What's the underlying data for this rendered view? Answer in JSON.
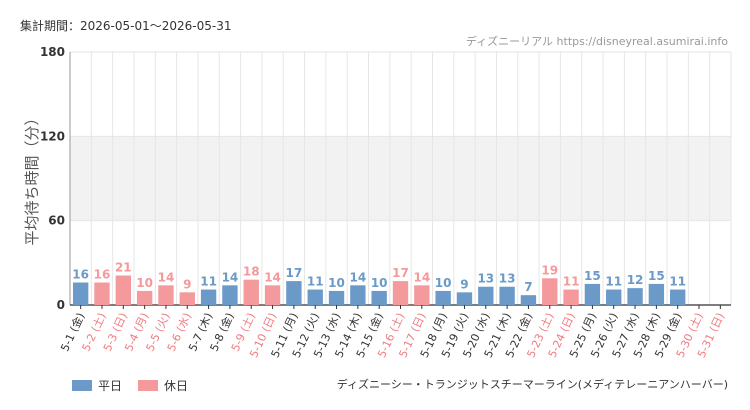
{
  "header": {
    "period": "集計期間：2026-05-01～2026-05-31",
    "source": "ディズニーリアル https://disneyreal.asumirai.info"
  },
  "footer": {
    "attraction": "ディズニーシー・トランジットスチーマーライン(メディテレーニアンハーバー)"
  },
  "legend": {
    "weekday": "平日",
    "holiday": "休日"
  },
  "colors": {
    "weekday": "#6b9ac9",
    "holiday": "#f4999c",
    "band": "#f2f2f2",
    "grid": "#e6e6e6"
  },
  "chart_data": {
    "type": "bar",
    "ylabel": "平均待ち時間（分）",
    "ylim": [
      0,
      180
    ],
    "yticks": [
      0,
      60,
      120,
      180
    ],
    "bands": [
      [
        120,
        180
      ],
      [
        60,
        120
      ]
    ],
    "categories": [
      "5-1 (金)",
      "5-2 (土)",
      "5-3 (日)",
      "5-4 (月)",
      "5-5 (火)",
      "5-6 (水)",
      "5-7 (木)",
      "5-8 (金)",
      "5-9 (土)",
      "5-10 (日)",
      "5-11 (月)",
      "5-12 (火)",
      "5-13 (水)",
      "5-14 (木)",
      "5-15 (金)",
      "5-16 (土)",
      "5-17 (日)",
      "5-18 (月)",
      "5-19 (火)",
      "5-20 (水)",
      "5-21 (木)",
      "5-22 (金)",
      "5-23 (土)",
      "5-24 (日)",
      "5-25 (月)",
      "5-26 (火)",
      "5-27 (水)",
      "5-28 (木)",
      "5-29 (金)",
      "5-30 (土)",
      "5-31 (日)"
    ],
    "values": [
      16,
      16,
      21,
      10,
      14,
      9,
      11,
      14,
      18,
      14,
      17,
      11,
      10,
      14,
      10,
      17,
      14,
      10,
      9,
      13,
      13,
      7,
      19,
      11,
      15,
      11,
      12,
      15,
      11,
      null,
      null
    ],
    "holiday": [
      false,
      true,
      true,
      true,
      true,
      true,
      false,
      false,
      true,
      true,
      false,
      false,
      false,
      false,
      false,
      true,
      true,
      false,
      false,
      false,
      false,
      false,
      true,
      true,
      false,
      false,
      false,
      false,
      false,
      true,
      true
    ]
  }
}
